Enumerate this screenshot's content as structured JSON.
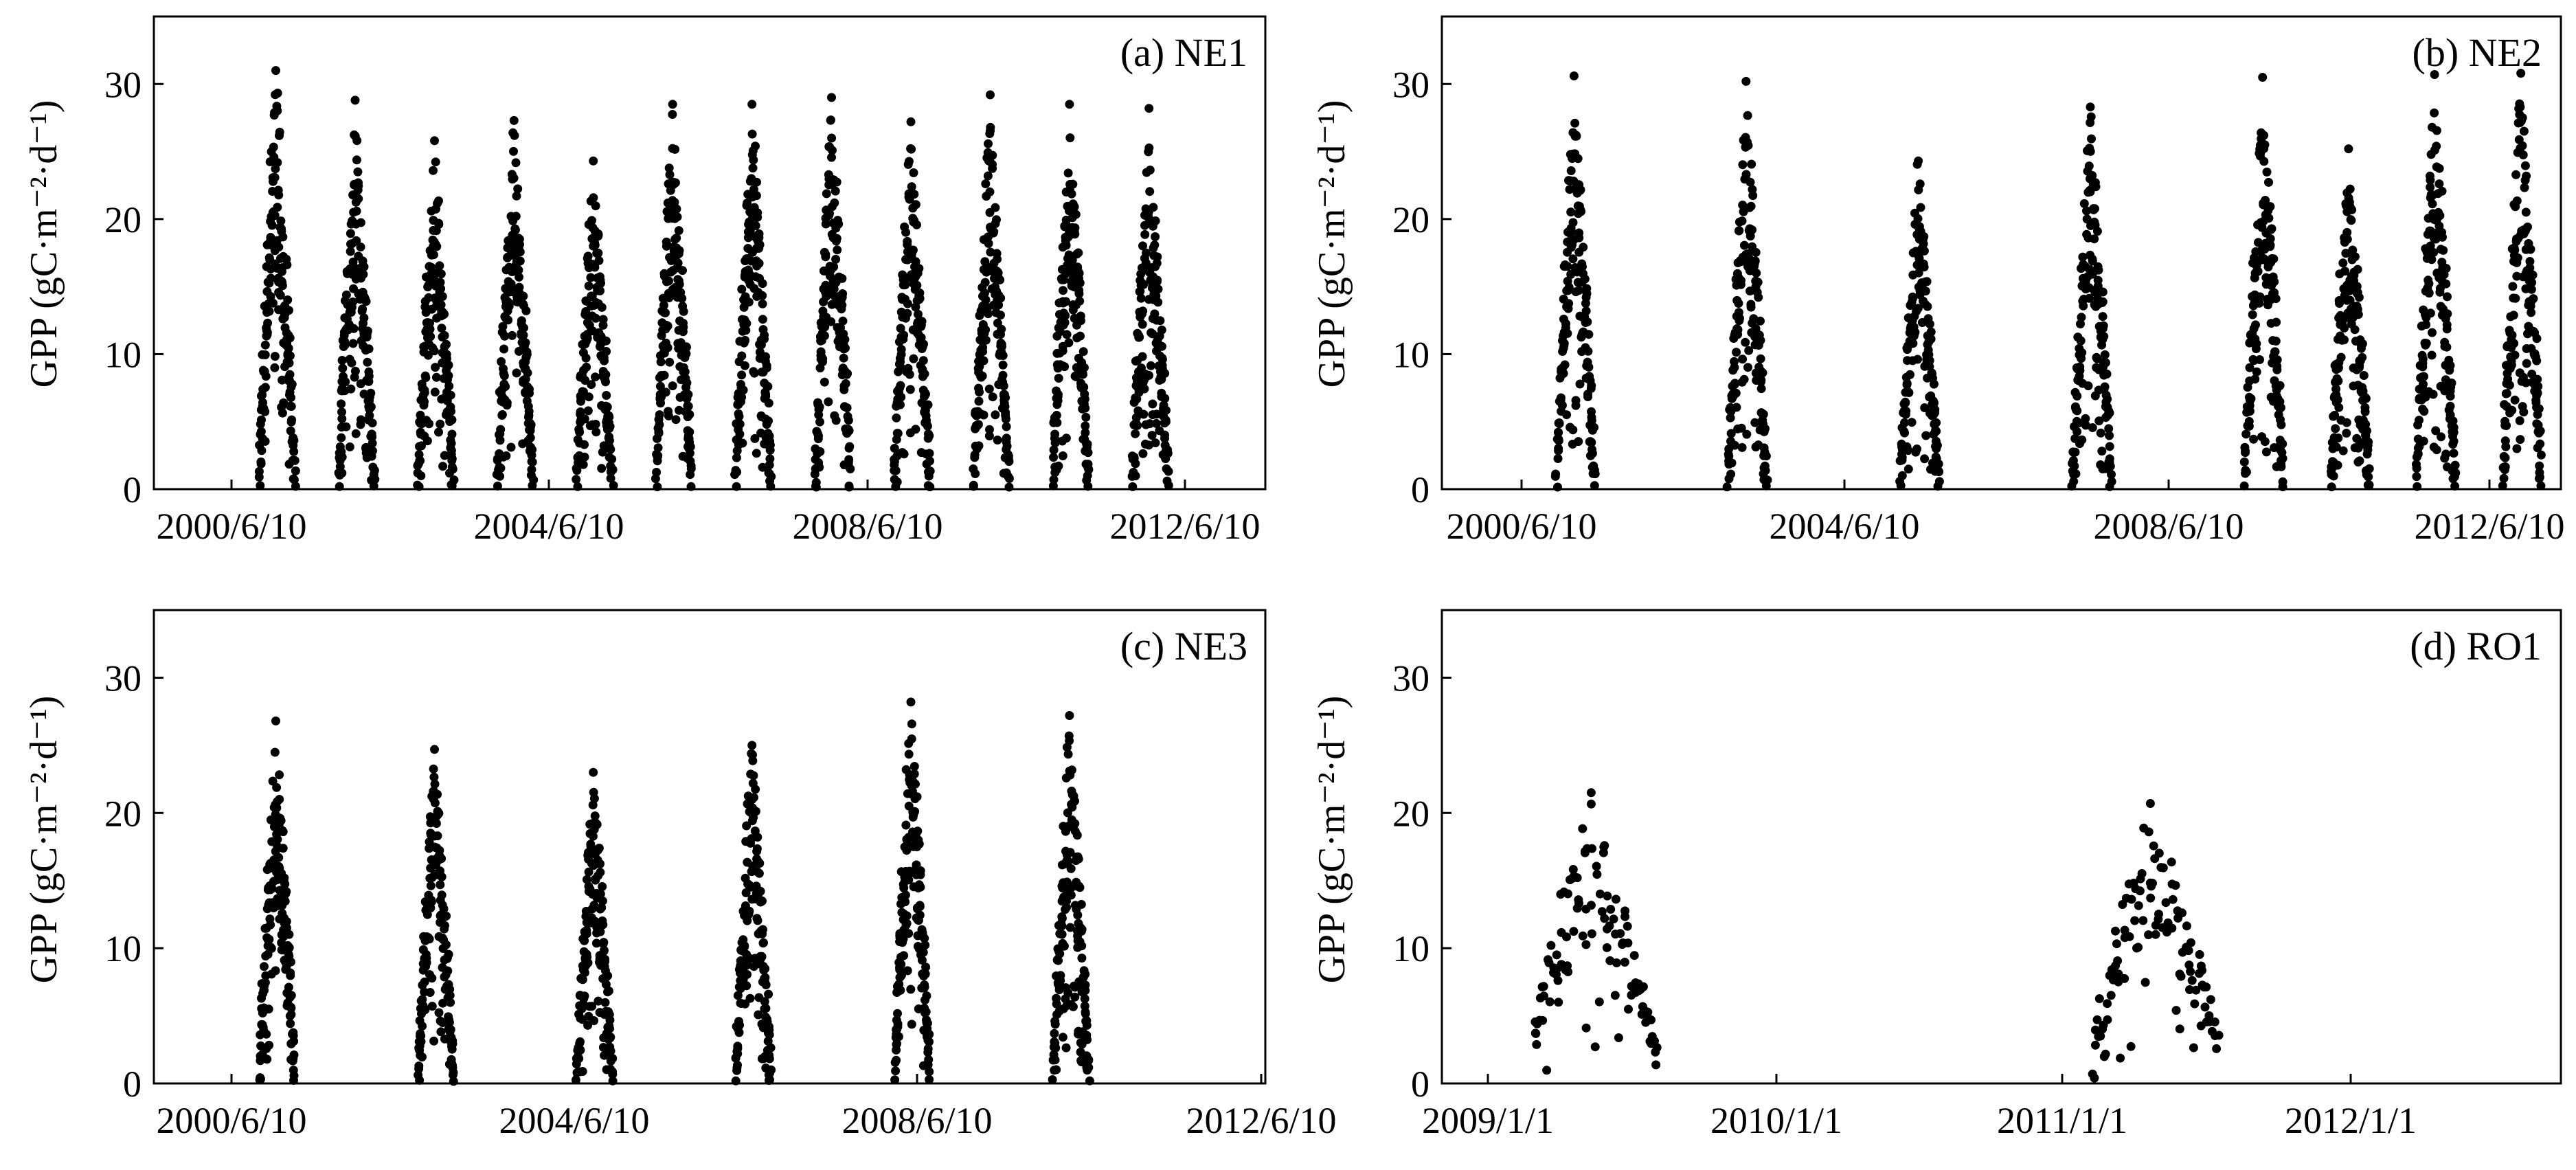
{
  "chart_data": [
    {
      "type": "scatter",
      "panel_label": "(a) NE1",
      "ylabel": "GPP (gC·m⁻²·d⁻¹)",
      "xlabel": "",
      "xlim": [
        "2000-01-01",
        "2014-01-01"
      ],
      "ylim": [
        0,
        35
      ],
      "x_ticks": [
        "2000/6/10",
        "2004/6/10",
        "2008/6/10",
        "2012/6/10"
      ],
      "y_ticks": [
        0,
        10,
        20,
        30
      ],
      "legend": "none",
      "grid": false,
      "seasons": [
        {
          "start": "2001-05-01",
          "peak": "2001-07-15",
          "end": "2001-10-10",
          "peak_gpp": 31
        },
        {
          "start": "2002-05-01",
          "peak": "2002-07-15",
          "end": "2002-10-10",
          "peak_gpp": 28.8
        },
        {
          "start": "2003-05-01",
          "peak": "2003-07-15",
          "end": "2003-10-10",
          "peak_gpp": 25.8
        },
        {
          "start": "2004-05-01",
          "peak": "2004-07-15",
          "end": "2004-10-10",
          "peak_gpp": 27.3
        },
        {
          "start": "2005-05-01",
          "peak": "2005-07-15",
          "end": "2005-10-10",
          "peak_gpp": 24.3
        },
        {
          "start": "2006-05-01",
          "peak": "2006-07-15",
          "end": "2006-10-10",
          "peak_gpp": 28.5
        },
        {
          "start": "2007-05-01",
          "peak": "2007-07-15",
          "end": "2007-10-10",
          "peak_gpp": 28.5
        },
        {
          "start": "2008-05-01",
          "peak": "2008-07-15",
          "end": "2008-10-10",
          "peak_gpp": 29
        },
        {
          "start": "2009-05-01",
          "peak": "2009-07-15",
          "end": "2009-10-10",
          "peak_gpp": 27.2
        },
        {
          "start": "2010-05-01",
          "peak": "2010-07-15",
          "end": "2010-10-10",
          "peak_gpp": 29.2
        },
        {
          "start": "2011-05-01",
          "peak": "2011-07-15",
          "end": "2011-10-10",
          "peak_gpp": 28.5
        },
        {
          "start": "2012-05-01",
          "peak": "2012-07-15",
          "end": "2012-10-10",
          "peak_gpp": 28.2
        }
      ]
    },
    {
      "type": "scatter",
      "panel_label": "(b) NE2",
      "ylabel": "GPP (gC·m⁻²·d⁻¹)",
      "xlabel": "",
      "xlim": [
        "2000-01-01",
        "2013-01-01"
      ],
      "ylim": [
        0,
        35
      ],
      "x_ticks": [
        "2000/6/10",
        "2004/6/10",
        "2008/6/10",
        "2012/6/10"
      ],
      "y_ticks": [
        0,
        10,
        20,
        30
      ],
      "legend": "none",
      "grid": false,
      "seasons": [
        {
          "start": "2001-05-01",
          "peak": "2001-07-15",
          "end": "2001-10-10",
          "peak_gpp": 30.6
        },
        {
          "start": "2003-05-01",
          "peak": "2003-07-15",
          "end": "2003-10-10",
          "peak_gpp": 30.2
        },
        {
          "start": "2005-05-01",
          "peak": "2005-07-15",
          "end": "2005-10-10",
          "peak_gpp": 24.3
        },
        {
          "start": "2007-05-01",
          "peak": "2007-07-15",
          "end": "2007-10-10",
          "peak_gpp": 28.3
        },
        {
          "start": "2009-05-01",
          "peak": "2009-07-15",
          "end": "2009-10-10",
          "peak_gpp": 30.5
        },
        {
          "start": "2010-05-01",
          "peak": "2010-07-15",
          "end": "2010-10-10",
          "peak_gpp": 25.2
        },
        {
          "start": "2011-05-01",
          "peak": "2011-07-15",
          "end": "2011-10-10",
          "peak_gpp": 30.7
        },
        {
          "start": "2012-05-01",
          "peak": "2012-07-15",
          "end": "2012-10-10",
          "peak_gpp": 30.8
        }
      ]
    },
    {
      "type": "scatter",
      "panel_label": "(c) NE3",
      "ylabel": "GPP (gC·m⁻²·d⁻¹)",
      "xlabel": "",
      "xlim": [
        "2000-01-01",
        "2014-01-01"
      ],
      "ylim": [
        0,
        35
      ],
      "x_ticks": [
        "2000/6/10",
        "2004/6/10",
        "2008/6/10",
        "2012/6/10"
      ],
      "y_ticks": [
        0,
        10,
        20,
        30
      ],
      "legend": "none",
      "grid": false,
      "seasons": [
        {
          "start": "2001-05-01",
          "peak": "2001-07-15",
          "end": "2001-10-10",
          "peak_gpp": 26.8
        },
        {
          "start": "2003-05-01",
          "peak": "2003-07-15",
          "end": "2003-10-10",
          "peak_gpp": 24.7
        },
        {
          "start": "2005-05-01",
          "peak": "2005-07-15",
          "end": "2005-10-10",
          "peak_gpp": 23
        },
        {
          "start": "2007-05-01",
          "peak": "2007-07-15",
          "end": "2007-10-10",
          "peak_gpp": 25
        },
        {
          "start": "2009-05-01",
          "peak": "2009-07-15",
          "end": "2009-10-10",
          "peak_gpp": 28.2
        },
        {
          "start": "2011-05-01",
          "peak": "2011-07-15",
          "end": "2011-10-10",
          "peak_gpp": 27.2
        }
      ]
    },
    {
      "type": "scatter",
      "panel_label": "(d) RO1",
      "ylabel": "GPP (gC·m⁻²·d⁻¹)",
      "xlabel": "",
      "xlim": [
        "2009-01-01",
        "2013-01-01"
      ],
      "ylim": [
        0,
        35
      ],
      "x_ticks": [
        "2009/1/1",
        "2010/1/1",
        "2011/1/1",
        "2012/1/1"
      ],
      "y_ticks": [
        0,
        10,
        20,
        30
      ],
      "legend": "none",
      "grid": false,
      "seasons": [
        {
          "start": "2009-05-01",
          "peak": "2009-07-15",
          "end": "2009-10-10",
          "peak_gpp": 21.5,
          "start_gpp": 4,
          "end_gpp": 2
        },
        {
          "start": "2011-05-01",
          "peak": "2011-07-15",
          "end": "2011-10-10",
          "peak_gpp": 20.7,
          "start_gpp": 2.5,
          "end_gpp": 4
        }
      ]
    }
  ]
}
